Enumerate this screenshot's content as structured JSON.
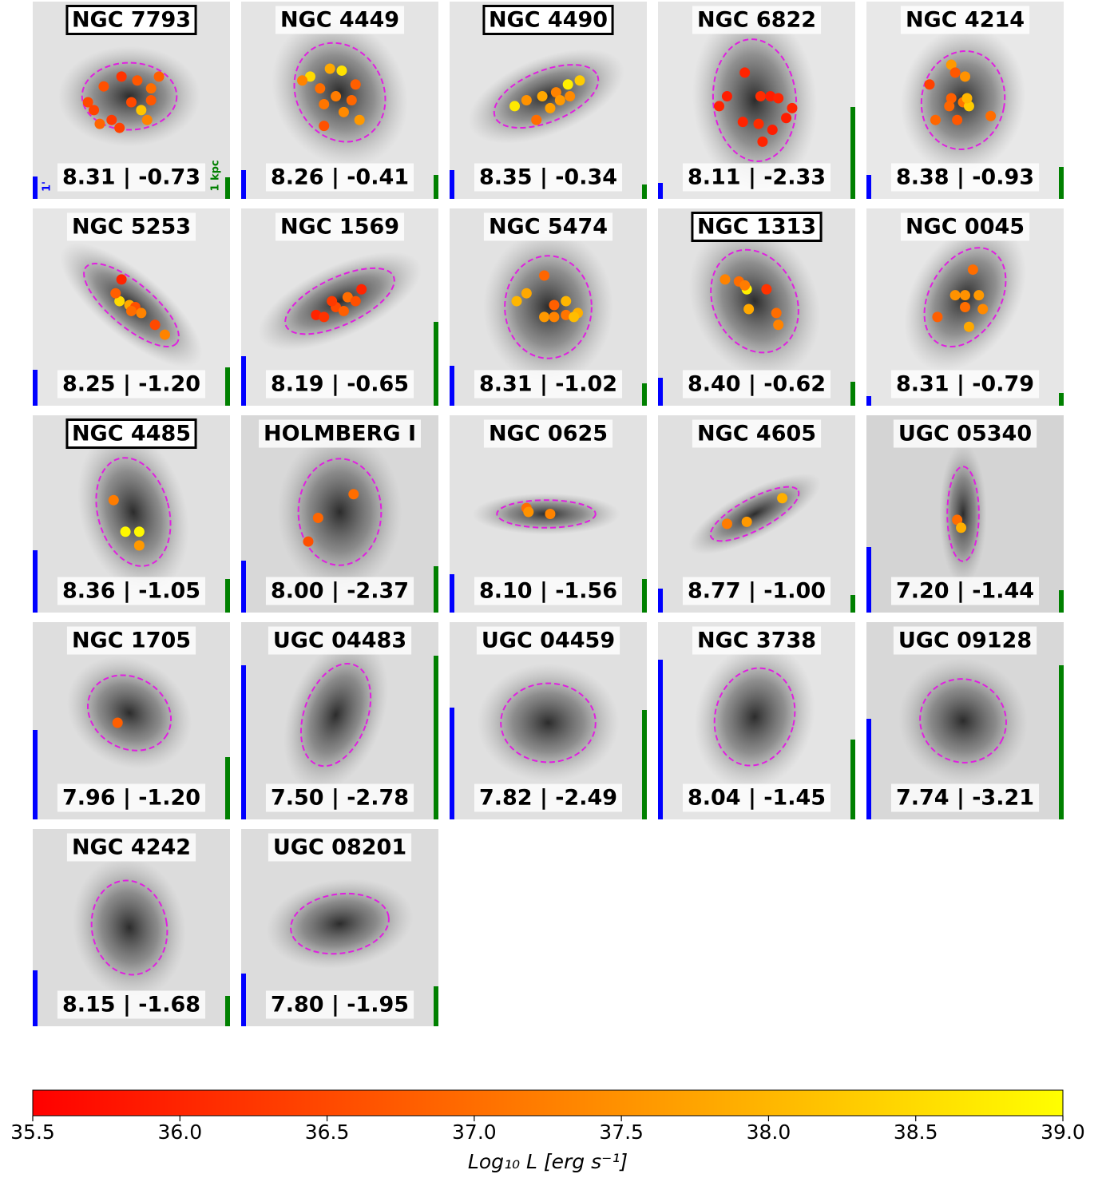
{
  "chart_data": {
    "type": "image-grid",
    "panels": [
      {
        "name": "NGC 7793",
        "boxed": true,
        "label": "8.31 | -0.73",
        "points": [
          [
            0.28,
            0.51,
            36.5
          ],
          [
            0.36,
            0.43,
            36.6
          ],
          [
            0.45,
            0.38,
            36.2
          ],
          [
            0.53,
            0.4,
            36.7
          ],
          [
            0.6,
            0.44,
            37.0
          ],
          [
            0.64,
            0.38,
            36.8
          ],
          [
            0.31,
            0.55,
            36.4
          ],
          [
            0.4,
            0.6,
            36.3
          ],
          [
            0.5,
            0.51,
            36.5
          ],
          [
            0.55,
            0.55,
            38.2
          ],
          [
            0.58,
            0.6,
            37.3
          ],
          [
            0.34,
            0.62,
            36.9
          ],
          [
            0.44,
            0.64,
            36.4
          ],
          [
            0.6,
            0.5,
            36.7
          ]
        ]
      },
      {
        "name": "NGC 4449",
        "boxed": false,
        "label": "8.26 | -0.41",
        "points": [
          [
            0.35,
            0.38,
            38.5
          ],
          [
            0.45,
            0.34,
            37.8
          ],
          [
            0.51,
            0.35,
            38.6
          ],
          [
            0.31,
            0.4,
            37.3
          ],
          [
            0.4,
            0.44,
            37.0
          ],
          [
            0.48,
            0.48,
            37.2
          ],
          [
            0.56,
            0.5,
            36.9
          ],
          [
            0.42,
            0.52,
            37.1
          ],
          [
            0.52,
            0.56,
            37.4
          ],
          [
            0.6,
            0.6,
            37.6
          ],
          [
            0.42,
            0.63,
            36.6
          ],
          [
            0.58,
            0.42,
            36.8
          ]
        ]
      },
      {
        "name": "NGC 4490",
        "boxed": true,
        "label": "8.35 | -0.34",
        "points": [
          [
            0.33,
            0.53,
            38.7
          ],
          [
            0.39,
            0.5,
            37.5
          ],
          [
            0.47,
            0.48,
            37.8
          ],
          [
            0.54,
            0.46,
            37.3
          ],
          [
            0.6,
            0.42,
            38.8
          ],
          [
            0.66,
            0.4,
            38.3
          ],
          [
            0.56,
            0.5,
            37.6
          ],
          [
            0.44,
            0.6,
            37.0
          ],
          [
            0.51,
            0.54,
            37.7
          ],
          [
            0.61,
            0.48,
            37.4
          ]
        ]
      },
      {
        "name": "NGC 6822",
        "boxed": false,
        "label": "8.11 | -2.33",
        "points": [
          [
            0.44,
            0.36,
            36.0
          ],
          [
            0.35,
            0.48,
            35.9
          ],
          [
            0.31,
            0.53,
            36.0
          ],
          [
            0.52,
            0.48,
            36.1
          ],
          [
            0.57,
            0.48,
            35.9
          ],
          [
            0.61,
            0.49,
            36.0
          ],
          [
            0.68,
            0.54,
            36.0
          ],
          [
            0.65,
            0.59,
            35.9
          ],
          [
            0.43,
            0.61,
            36.0
          ],
          [
            0.51,
            0.62,
            36.1
          ],
          [
            0.58,
            0.65,
            35.9
          ],
          [
            0.53,
            0.71,
            36.0
          ]
        ]
      },
      {
        "name": "NGC 4214",
        "boxed": false,
        "label": "8.38 | -0.93",
        "points": [
          [
            0.43,
            0.32,
            37.6
          ],
          [
            0.32,
            0.42,
            36.4
          ],
          [
            0.45,
            0.36,
            36.7
          ],
          [
            0.5,
            0.38,
            37.5
          ],
          [
            0.43,
            0.49,
            36.8
          ],
          [
            0.42,
            0.53,
            36.9
          ],
          [
            0.49,
            0.51,
            37.1
          ],
          [
            0.52,
            0.53,
            38.3
          ],
          [
            0.35,
            0.6,
            36.9
          ],
          [
            0.46,
            0.6,
            36.7
          ],
          [
            0.63,
            0.58,
            37.0
          ],
          [
            0.51,
            0.49,
            38.0
          ]
        ]
      },
      {
        "name": "NGC 5253",
        "boxed": false,
        "label": "8.25 | -1.20",
        "points": [
          [
            0.45,
            0.36,
            36.0
          ],
          [
            0.44,
            0.47,
            38.5
          ],
          [
            0.49,
            0.49,
            37.8
          ],
          [
            0.52,
            0.5,
            36.6
          ],
          [
            0.55,
            0.53,
            37.3
          ],
          [
            0.5,
            0.52,
            37.0
          ],
          [
            0.62,
            0.59,
            36.5
          ],
          [
            0.67,
            0.64,
            37.3
          ],
          [
            0.42,
            0.43,
            36.8
          ]
        ]
      },
      {
        "name": "NGC 1569",
        "boxed": false,
        "label": "8.19 | -0.65",
        "points": [
          [
            0.38,
            0.54,
            36.0
          ],
          [
            0.42,
            0.55,
            36.2
          ],
          [
            0.48,
            0.5,
            36.5
          ],
          [
            0.54,
            0.45,
            37.0
          ],
          [
            0.58,
            0.47,
            36.6
          ],
          [
            0.52,
            0.52,
            36.8
          ],
          [
            0.61,
            0.41,
            36.0
          ],
          [
            0.46,
            0.47,
            36.3
          ]
        ]
      },
      {
        "name": "NGC 5474",
        "boxed": false,
        "label": "8.31 | -1.02",
        "points": [
          [
            0.48,
            0.34,
            36.9
          ],
          [
            0.39,
            0.43,
            37.8
          ],
          [
            0.34,
            0.47,
            38.0
          ],
          [
            0.53,
            0.49,
            36.8
          ],
          [
            0.59,
            0.47,
            38.0
          ],
          [
            0.48,
            0.55,
            37.6
          ],
          [
            0.53,
            0.55,
            37.3
          ],
          [
            0.59,
            0.54,
            37.1
          ],
          [
            0.65,
            0.53,
            37.9
          ],
          [
            0.63,
            0.55,
            38.1
          ]
        ]
      },
      {
        "name": "NGC 1313",
        "boxed": true,
        "label": "8.40 | -0.62",
        "points": [
          [
            0.34,
            0.36,
            37.3
          ],
          [
            0.41,
            0.37,
            37.0
          ],
          [
            0.45,
            0.41,
            38.8
          ],
          [
            0.44,
            0.39,
            37.2
          ],
          [
            0.55,
            0.41,
            36.2
          ],
          [
            0.46,
            0.51,
            37.8
          ],
          [
            0.6,
            0.53,
            37.0
          ],
          [
            0.61,
            0.59,
            37.3
          ]
        ]
      },
      {
        "name": "NGC 0045",
        "boxed": false,
        "label": "8.31 | -0.79",
        "points": [
          [
            0.54,
            0.31,
            37.0
          ],
          [
            0.45,
            0.44,
            37.5
          ],
          [
            0.5,
            0.44,
            37.5
          ],
          [
            0.57,
            0.44,
            37.6
          ],
          [
            0.5,
            0.5,
            37.0
          ],
          [
            0.59,
            0.51,
            37.4
          ],
          [
            0.36,
            0.55,
            36.8
          ],
          [
            0.52,
            0.6,
            37.8
          ]
        ]
      },
      {
        "name": "NGC 4485",
        "boxed": true,
        "label": "8.36 | -1.05",
        "points": [
          [
            0.41,
            0.43,
            37.2
          ],
          [
            0.47,
            0.59,
            38.9
          ],
          [
            0.54,
            0.59,
            38.9
          ],
          [
            0.54,
            0.66,
            37.6
          ]
        ]
      },
      {
        "name": "HOLMBERG I",
        "boxed": false,
        "label": "8.00 | -2.37",
        "points": [
          [
            0.57,
            0.4,
            37.0
          ],
          [
            0.39,
            0.52,
            36.9
          ],
          [
            0.34,
            0.64,
            36.6
          ]
        ]
      },
      {
        "name": "NGC 0625",
        "boxed": false,
        "label": "8.10 | -1.56",
        "points": [
          [
            0.39,
            0.47,
            37.0
          ],
          [
            0.4,
            0.49,
            37.5
          ],
          [
            0.51,
            0.5,
            37.3
          ]
        ]
      },
      {
        "name": "NGC 4605",
        "boxed": false,
        "label": "8.77 | -1.00",
        "points": [
          [
            0.35,
            0.55,
            37.2
          ],
          [
            0.45,
            0.54,
            37.6
          ],
          [
            0.63,
            0.42,
            37.9
          ]
        ]
      },
      {
        "name": "UGC 05340",
        "boxed": false,
        "label": "7.20 | -1.44",
        "points": [
          [
            0.46,
            0.53,
            37.0
          ],
          [
            0.48,
            0.57,
            37.9
          ]
        ]
      },
      {
        "name": "NGC 1705",
        "boxed": false,
        "label": "7.96 | -1.20",
        "points": [
          [
            0.43,
            0.51,
            36.8
          ]
        ]
      },
      {
        "name": "UGC 04483",
        "boxed": false,
        "label": "7.50 | -2.78",
        "points": []
      },
      {
        "name": "UGC 04459",
        "boxed": false,
        "label": "7.82 | -2.49",
        "points": []
      },
      {
        "name": "NGC 3738",
        "boxed": false,
        "label": "8.04 | -1.45",
        "points": []
      },
      {
        "name": "UGC 09128",
        "boxed": false,
        "label": "7.74 | -3.21",
        "points": []
      },
      {
        "name": "NGC 4242",
        "boxed": false,
        "label": "8.15 | -1.68",
        "points": []
      },
      {
        "name": "UGC 08201",
        "boxed": false,
        "label": "7.80 | -1.95",
        "points": []
      }
    ],
    "scale_bar_labels": {
      "angular": "1'",
      "physical": "1 kpc"
    },
    "colorbar": {
      "label": "Log₁₀ L [erg s⁻¹]",
      "xlim": [
        35.5,
        39.0
      ],
      "colors": [
        "#ff0000",
        "#ffff00"
      ],
      "xticks": [
        35.5,
        {
          "value": 36,
          "label": "36.0"
        },
        36.5,
        {
          "value": 37,
          "label": "37.0"
        },
        37.5,
        {
          "value": 38,
          "label": "38.0"
        },
        38.5,
        {
          "value": 39,
          "label": "39.0"
        }
      ]
    }
  }
}
